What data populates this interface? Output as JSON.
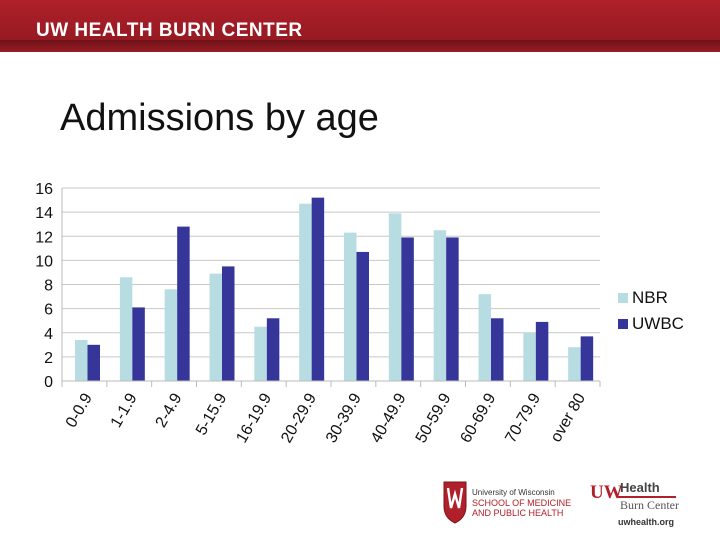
{
  "header": {
    "banner_title": "UW HEALTH BURN CENTER"
  },
  "slide": {
    "title": "Admissions by age"
  },
  "footer": {
    "logo1": {
      "line1": "University of Wisconsin",
      "line2": "SCHOOL OF MEDICINE",
      "line3": "AND PUBLIC HEALTH"
    },
    "logo2": {
      "uw": "UW",
      "health": "Health",
      "burn": "Burn Center",
      "url": "uwhealth.org"
    }
  },
  "chart_data": {
    "type": "bar",
    "categories": [
      "0-0.9",
      "1-1.9",
      "2-4.9",
      "5-15.9",
      "16-19.9",
      "20-29.9",
      "30-39.9",
      "40-49.9",
      "50-59.9",
      "60-69.9",
      "70-79.9",
      "over 80"
    ],
    "series": [
      {
        "name": "NBR",
        "color": "#b7dde3",
        "values": [
          3.4,
          8.6,
          7.6,
          8.9,
          4.5,
          14.7,
          12.3,
          13.9,
          12.5,
          7.2,
          4.0,
          2.8
        ]
      },
      {
        "name": "UWBC",
        "color": "#35359a",
        "values": [
          3.0,
          6.1,
          12.8,
          9.5,
          5.2,
          15.2,
          10.7,
          11.9,
          11.9,
          5.2,
          4.9,
          3.7
        ]
      }
    ],
    "ylim": [
      0,
      16
    ],
    "yticks": [
      "0",
      "2",
      "4",
      "6",
      "8",
      "10",
      "12",
      "14",
      "16"
    ],
    "grid": true,
    "legend": "right"
  }
}
